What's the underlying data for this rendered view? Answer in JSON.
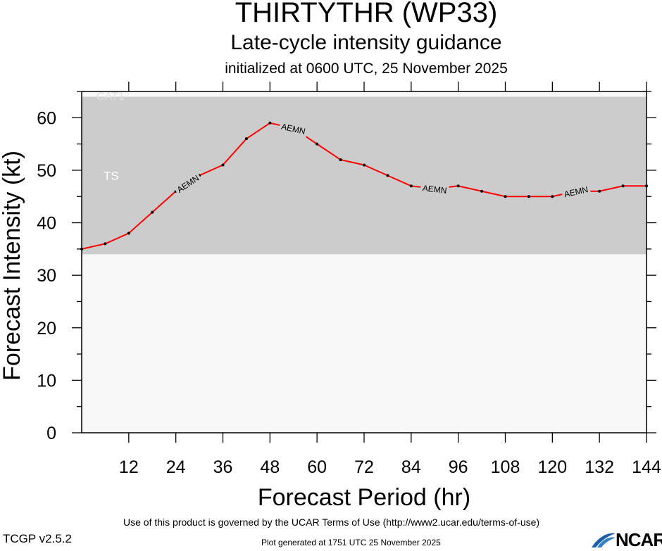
{
  "title": "THIRTYTHR (WP33)",
  "subtitle": "Late-cycle intensity guidance",
  "init_line": "initialized at 0600 UTC, 25 November 2025",
  "footer": {
    "terms": "Use of this product is governed by the UCAR Terms of Use (http://www2.ucar.edu/terms-of-use)",
    "version": "TCGP v2.5.2",
    "generated": "Plot generated at 1751 UTC   25 November 2025",
    "logo_text": "NCAR"
  },
  "colors": {
    "ts_band": "#cccccc",
    "plot_bg": "#f8f8f8",
    "line": "#ff0000",
    "ts_label": "#ffffff",
    "cat1_label": "#e0e0e0"
  },
  "chart_data": {
    "type": "line",
    "xlabel": "Forecast Period (hr)",
    "ylabel": "Forecast Intensity (kt)",
    "xlim": [
      0,
      144
    ],
    "ylim": [
      0,
      65
    ],
    "x_ticks": [
      12,
      24,
      36,
      48,
      60,
      72,
      84,
      96,
      108,
      120,
      132,
      144
    ],
    "y_ticks": [
      0,
      10,
      20,
      30,
      40,
      50,
      60
    ],
    "grid": false,
    "bands": [
      {
        "label": "TS",
        "from": 34,
        "to": 64,
        "color": "#cccccc"
      },
      {
        "label": "CAT1",
        "from": 64,
        "to": 65,
        "color": "#f8f8f8"
      }
    ],
    "series": [
      {
        "name": "AEMN",
        "x": [
          0,
          6,
          12,
          18,
          24,
          30,
          36,
          42,
          48,
          54,
          60,
          66,
          72,
          78,
          84,
          90,
          96,
          102,
          108,
          114,
          120,
          126,
          132,
          138,
          144
        ],
        "y": [
          35,
          36,
          38,
          42,
          46,
          49,
          51,
          56,
          59,
          58,
          55,
          52,
          51,
          49,
          47,
          46.5,
          47,
          46,
          45,
          45,
          45,
          46,
          46,
          47,
          47
        ],
        "labels_at": [
          27,
          54,
          90,
          126
        ]
      }
    ]
  }
}
